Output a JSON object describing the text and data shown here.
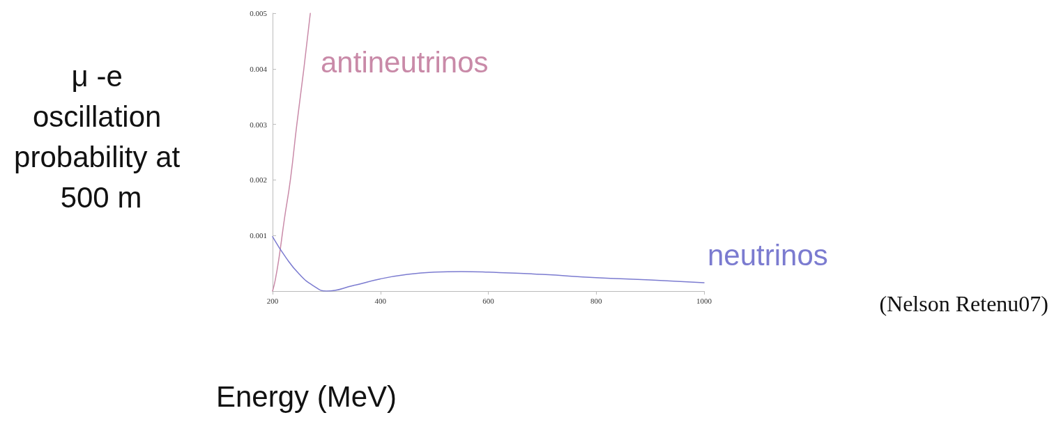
{
  "chart_data": {
    "type": "line",
    "xlabel": "Energy (MeV)",
    "ylabel": "μ -e oscillation probability at 500 m",
    "annotations": [
      "(Nelson Retenu07)"
    ],
    "series": [
      {
        "name": "antineutrinos",
        "color": "#c98aa8",
        "x": [
          200,
          205,
          212,
          222,
          233,
          245,
          258,
          270
        ],
        "values": [
          0,
          0.0002,
          0.0006,
          0.0013,
          0.002,
          0.003,
          0.004,
          0.005
        ]
      },
      {
        "name": "neutrinos",
        "color": "#7b7bd0",
        "x": [
          200,
          225,
          250,
          275,
          300,
          350,
          400,
          450,
          500,
          550,
          600,
          700,
          800,
          900,
          1000
        ],
        "values": [
          0.00098,
          0.0006,
          0.0003,
          0.0001,
          0,
          0.0001,
          0.00022,
          0.0003,
          0.00034,
          0.00035,
          0.00034,
          0.0003,
          0.00024,
          0.0002,
          0.00015
        ]
      }
    ],
    "xlim": [
      200,
      1000
    ],
    "xticks": [
      200,
      400,
      600,
      800,
      1000
    ],
    "ylim": [
      0,
      0.005
    ],
    "yticks": [
      0.001,
      0.002,
      0.003,
      0.004,
      0.005
    ],
    "grid": false,
    "marker": "none",
    "line_style": "solid"
  }
}
